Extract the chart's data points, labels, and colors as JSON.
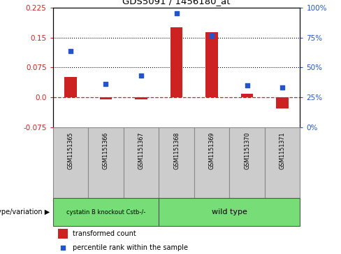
{
  "title": "GDS5091 / 1456180_at",
  "samples": [
    "GSM1151365",
    "GSM1151366",
    "GSM1151367",
    "GSM1151368",
    "GSM1151369",
    "GSM1151370",
    "GSM1151371"
  ],
  "bar_values": [
    0.05,
    -0.005,
    -0.005,
    0.175,
    0.163,
    0.008,
    -0.028
  ],
  "dot_values": [
    0.115,
    0.033,
    0.055,
    0.21,
    0.155,
    0.03,
    0.025
  ],
  "ylim_left": [
    -0.075,
    0.225
  ],
  "yticks_left": [
    -0.075,
    0.0,
    0.075,
    0.15,
    0.225
  ],
  "yticks_right_pct": [
    0,
    25,
    50,
    75,
    100
  ],
  "bar_color": "#cc2222",
  "dot_color": "#2255cc",
  "zero_line_color": "#cc2222",
  "grid_color": "#000000",
  "group1_label": "cystatin B knockout Cstb-/-",
  "group2_label": "wild type",
  "group1_count": 3,
  "group2_count": 4,
  "group_color": "#77dd77",
  "sample_box_color": "#cccccc",
  "sample_box_edge": "#888888",
  "legend_bar_label": "transformed count",
  "legend_dot_label": "percentile rank within the sample",
  "genotype_label": "genotype/variation"
}
